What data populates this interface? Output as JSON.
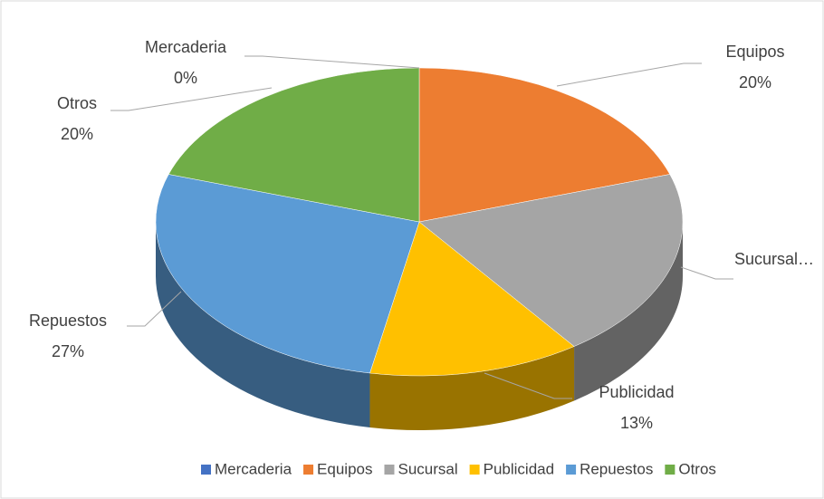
{
  "chart_data": {
    "type": "pie3d",
    "categories": [
      "Mercaderia",
      "Equipos",
      "Sucursal",
      "Publicidad",
      "Repuestos",
      "Otros"
    ],
    "values": [
      0,
      20,
      20,
      13,
      27,
      20
    ],
    "value_labels": [
      "0%",
      "20%",
      null,
      "13%",
      "27%",
      "20%"
    ],
    "slice_labels": [
      "Mercaderia",
      "Equipos",
      "Sucursal…",
      "Publicidad",
      "Repuestos",
      "Otros"
    ],
    "colors": [
      "#4472c4",
      "#ed7d31",
      "#a5a5a5",
      "#ffc000",
      "#5b9bd5",
      "#70ad47"
    ],
    "legend": "bottom"
  }
}
